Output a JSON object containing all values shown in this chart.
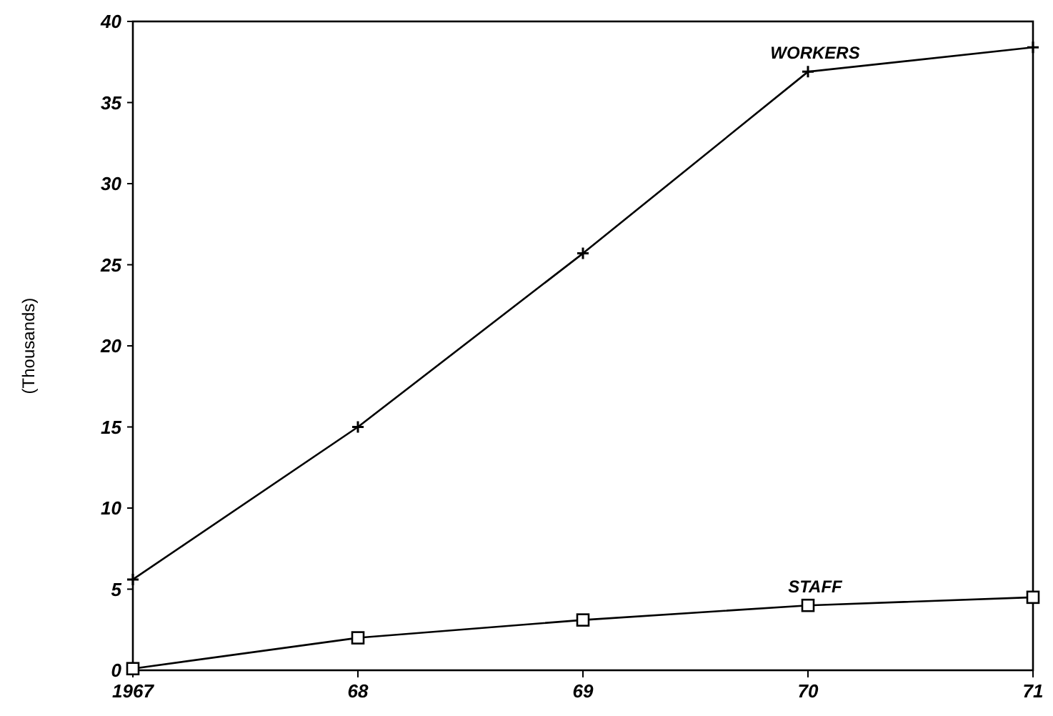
{
  "chart_data": {
    "type": "line",
    "ylabel": "(Thousands)",
    "categories": [
      "1967",
      "68",
      "69",
      "70",
      "71"
    ],
    "ylim": [
      0,
      40
    ],
    "yticks": [
      0,
      5,
      10,
      15,
      20,
      25,
      30,
      35,
      40
    ],
    "grid": false,
    "legend": false,
    "series": [
      {
        "name": "WORKERS",
        "color": "#000000",
        "marker": "cross",
        "values": [
          5.6,
          15,
          25.7,
          36.9,
          38.4
        ]
      },
      {
        "name": "STAFF",
        "color": "#000000",
        "marker": "square",
        "values": [
          0.1,
          2.0,
          3.1,
          4.0,
          4.5
        ]
      }
    ]
  }
}
